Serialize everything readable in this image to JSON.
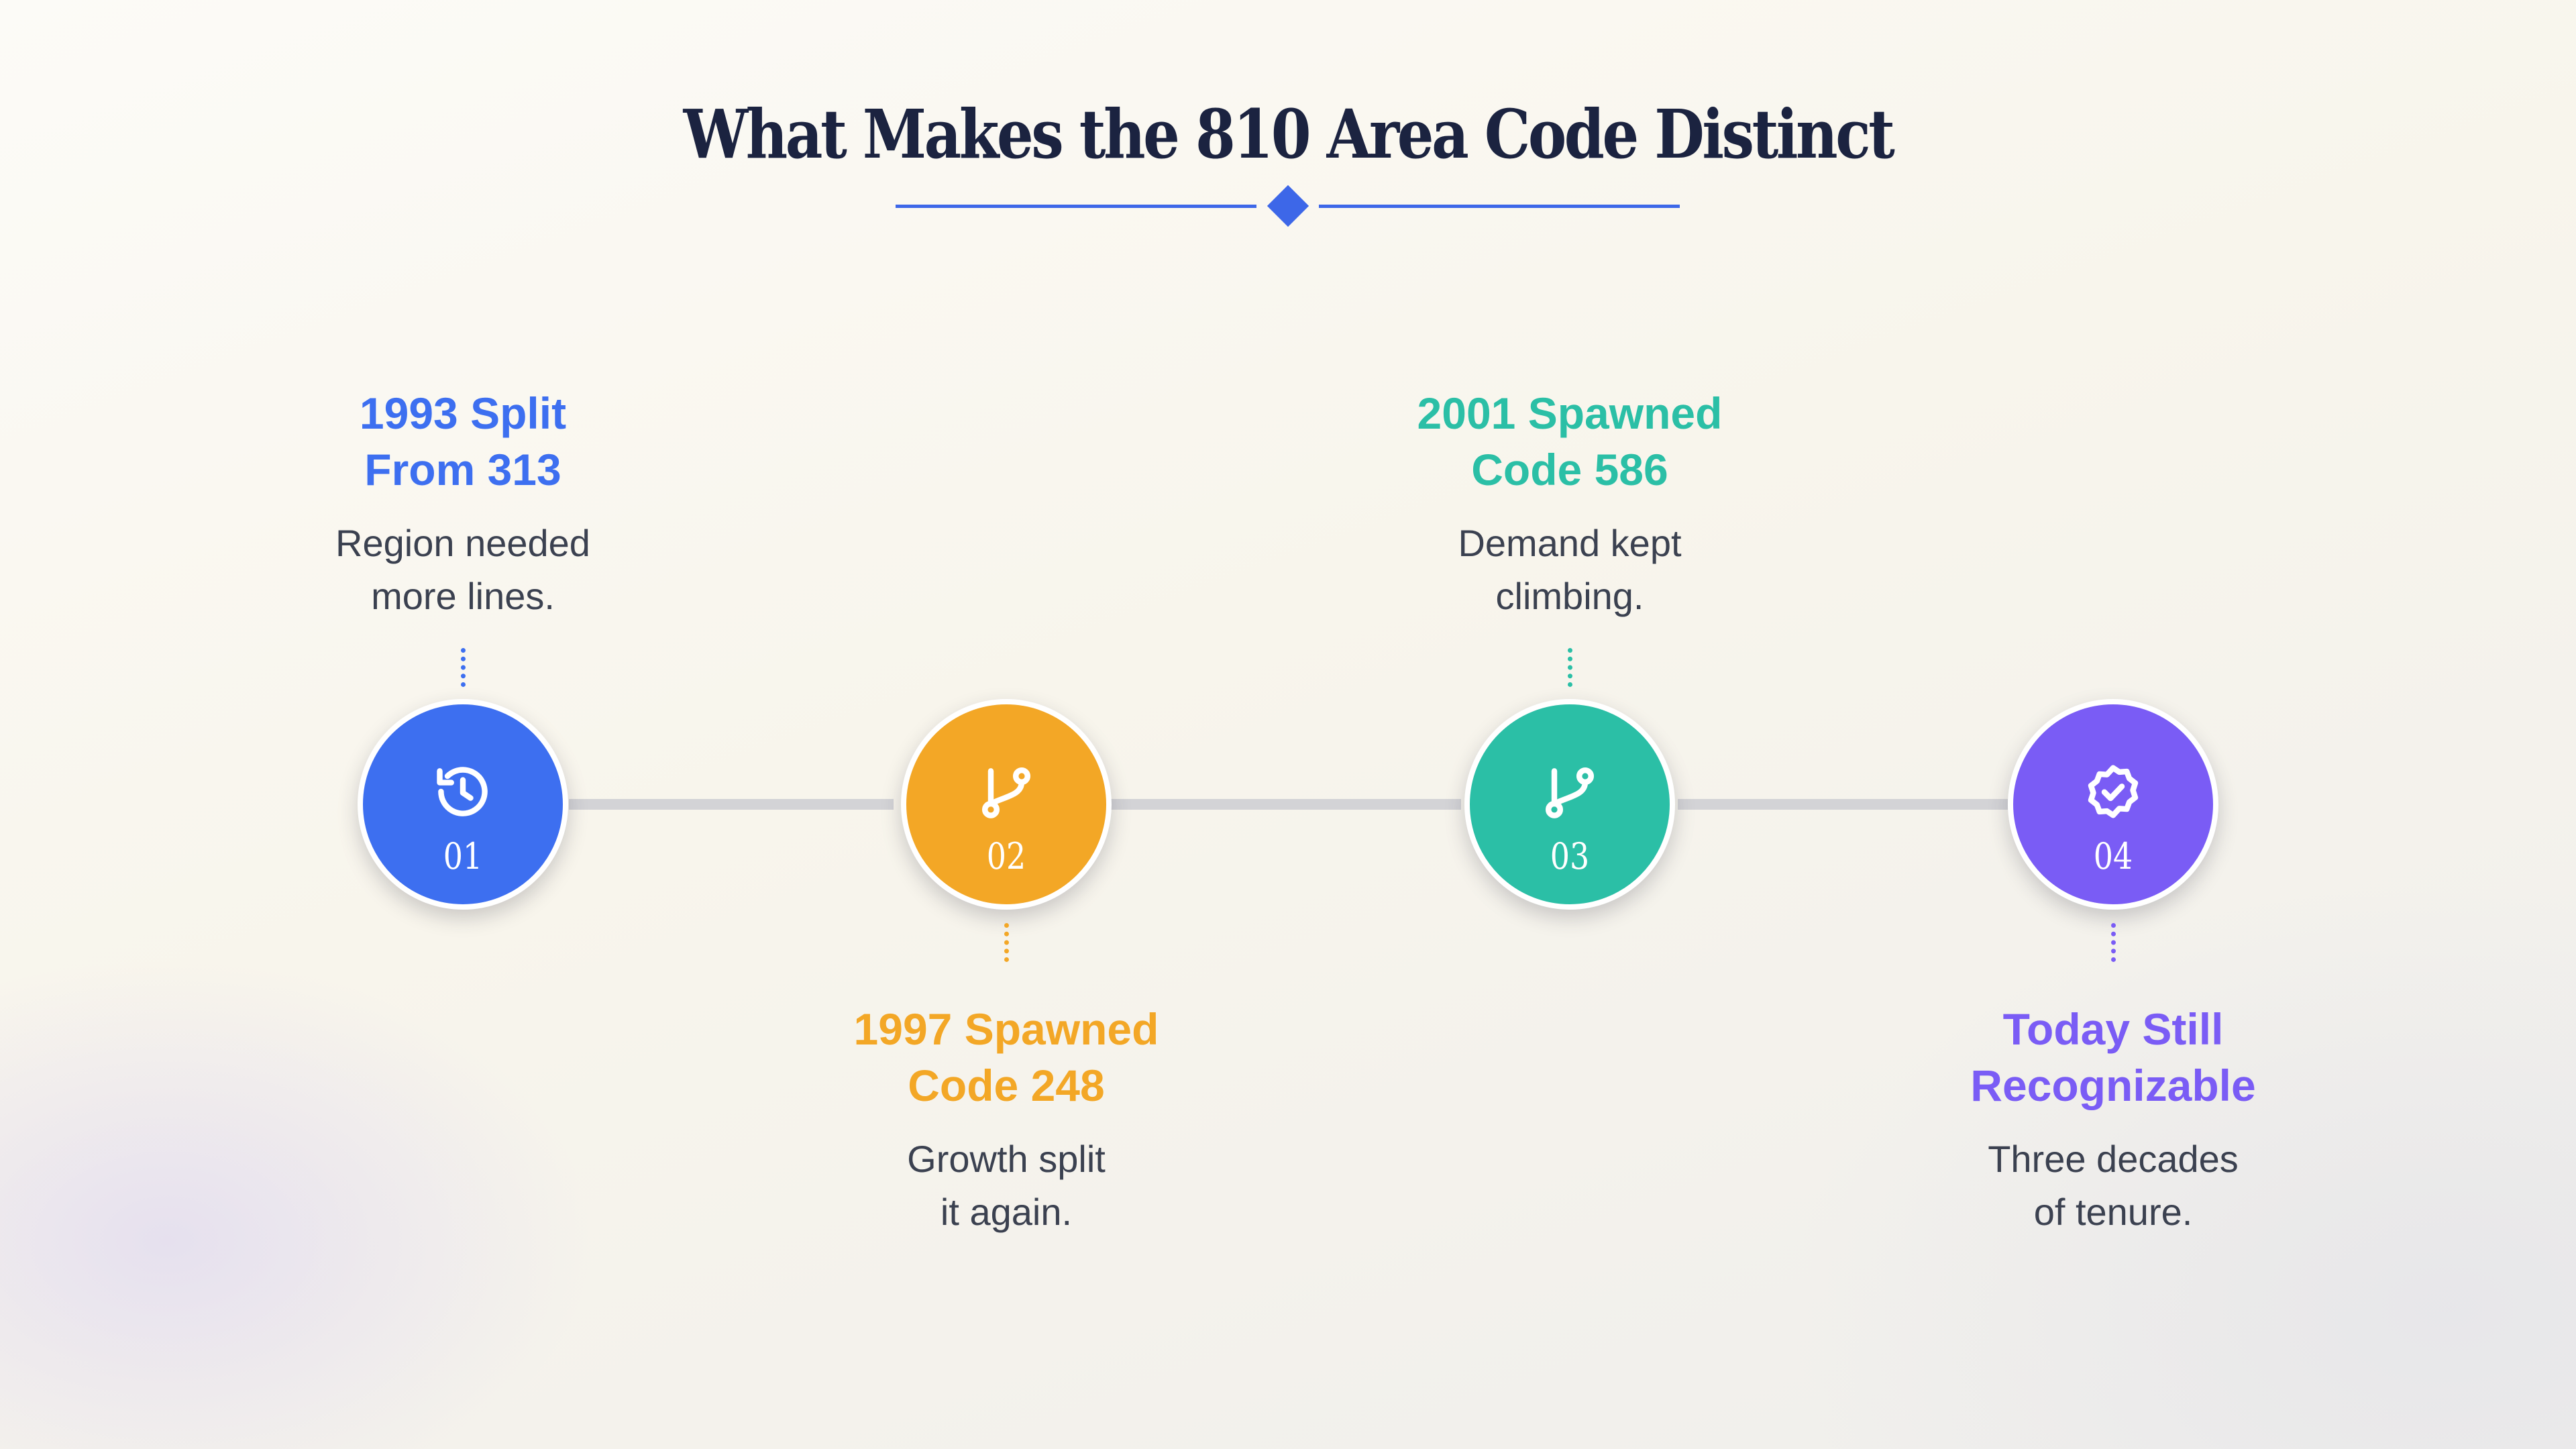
{
  "title": "What Makes the 810 Area Code Distinct",
  "colors": {
    "accent": "#3d67e8",
    "track": "#d3d3d6"
  },
  "milestones": [
    {
      "number": "01",
      "head_line1": "1993 Split",
      "head_line2": "From 313",
      "desc_line1": "Region needed",
      "desc_line2": "more lines.",
      "icon": "history-clock-icon",
      "color": "#3d6ff0",
      "label_position": "top"
    },
    {
      "number": "02",
      "head_line1": "1997 Spawned",
      "head_line2": "Code 248",
      "desc_line1": "Growth split",
      "desc_line2": "it again.",
      "icon": "git-branch-icon",
      "color": "#f3a726",
      "label_position": "bottom"
    },
    {
      "number": "03",
      "head_line1": "2001 Spawned",
      "head_line2": "Code 586",
      "desc_line1": "Demand kept",
      "desc_line2": "climbing.",
      "icon": "git-branch-icon",
      "color": "#2bbfa6",
      "label_position": "top"
    },
    {
      "number": "04",
      "head_line1": "Today Still",
      "head_line2": "Recognizable",
      "desc_line1": "Three decades",
      "desc_line2": "of tenure.",
      "icon": "badge-check-icon",
      "color": "#7a5cf5",
      "label_position": "bottom"
    }
  ]
}
